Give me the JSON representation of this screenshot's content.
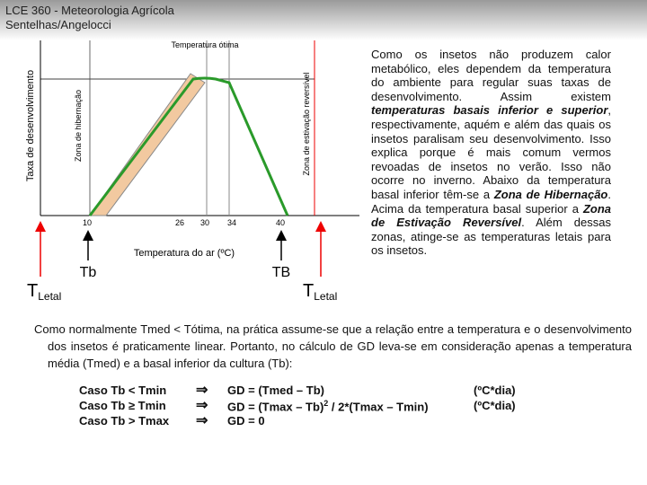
{
  "header": {
    "title": "LCE 360 - Meteorologia Agrícola",
    "subtitle": "Sentelhas/Angelocci"
  },
  "diagram": {
    "y_axis_label": "Taxa de desenvolvimento",
    "zone_low_label": "Zona de hibernação",
    "zone_high_label": "Zona de estivação reversível",
    "optimum_label": "Temperatura ótima",
    "x_axis_label": "Temperatura do ar (ºC)",
    "ticks": [
      "10",
      "26",
      "30",
      "34",
      "40"
    ],
    "lower_base_label": "Tb",
    "upper_base_label": "TB",
    "lethal_left": {
      "main": "T",
      "sub": "Letal"
    },
    "lethal_right": {
      "main": "T",
      "sub": "Letal"
    }
  },
  "side_text": [
    {
      "text": "Como os insetos não produzem calor metabólico, eles dependem da temperatura do ambiente para regular suas taxas de desenvolvimento. Assim existem "
    },
    {
      "text": "temperaturas basais inferior e superior",
      "emphasis": true
    },
    {
      "text": ", respectivamente, aquém e além das quais os insetos paralisam seu desenvolvimento. Isso explica porque é mais comum vermos revoadas de insetos no verão. Isso não ocorre no inverno. Abaixo da temperatura basal inferior têm-se a "
    },
    {
      "text": "Zona de Hibernação",
      "emphasis": true
    },
    {
      "text": ". Acima da temperatura basal superior a "
    },
    {
      "text": "Zona de Estivação Reversível",
      "emphasis": true
    },
    {
      "text": ". Além dessas zonas, atinge-se as temperaturas letais para os insetos."
    }
  ],
  "body_text": "Como normalmente Tmed < Tótima, na prática assume-se que a relação entre a temperatura e o desenvolvimento dos insetos é praticamente linear. Portanto, no cálculo de GD leva-se em consideração apenas a temperatura média (Tmed) e a basal inferior da cultura (Tb):",
  "formulas": [
    {
      "case": "Caso Tb < Tmin",
      "arrow": "⇒",
      "formula": "GD = (Tmed – Tb)",
      "unit": "(ºC*dia)"
    },
    {
      "case": "Caso Tb ≥ Tmin",
      "arrow": "⇒",
      "formula": "GD = (Tmax – Tb)",
      "power": "2",
      "formula_rest": " / 2*(Tmax – Tmin)",
      "unit": "(ºC*dia)"
    },
    {
      "case": "Caso Tb > Tmax",
      "arrow": "⇒",
      "formula": "GD = 0"
    }
  ]
}
